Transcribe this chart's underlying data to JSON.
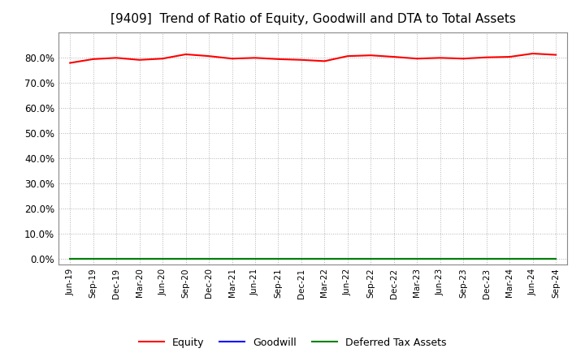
{
  "title": "[9409]  Trend of Ratio of Equity, Goodwill and DTA to Total Assets",
  "x_labels": [
    "Jun-19",
    "Sep-19",
    "Dec-19",
    "Mar-20",
    "Jun-20",
    "Sep-20",
    "Dec-20",
    "Mar-21",
    "Jun-21",
    "Sep-21",
    "Dec-21",
    "Mar-22",
    "Jun-22",
    "Sep-22",
    "Dec-22",
    "Mar-23",
    "Jun-23",
    "Sep-23",
    "Dec-23",
    "Mar-24",
    "Jun-24",
    "Sep-24"
  ],
  "equity": [
    77.8,
    79.3,
    79.8,
    79.0,
    79.5,
    81.2,
    80.5,
    79.5,
    79.8,
    79.3,
    79.0,
    78.5,
    80.5,
    80.8,
    80.2,
    79.5,
    79.8,
    79.5,
    80.0,
    80.2,
    81.5,
    81.0
  ],
  "goodwill": [
    0.0,
    0.0,
    0.0,
    0.0,
    0.0,
    0.0,
    0.0,
    0.0,
    0.0,
    0.0,
    0.0,
    0.0,
    0.0,
    0.0,
    0.0,
    0.0,
    0.0,
    0.0,
    0.0,
    0.0,
    0.0,
    0.0
  ],
  "dta": [
    0.0,
    0.0,
    0.0,
    0.0,
    0.0,
    0.0,
    0.0,
    0.0,
    0.0,
    0.0,
    0.0,
    0.0,
    0.0,
    0.0,
    0.0,
    0.0,
    0.0,
    0.0,
    0.0,
    0.0,
    0.0,
    0.0
  ],
  "equity_color": "#FF0000",
  "goodwill_color": "#0000FF",
  "dta_color": "#008000",
  "bg_color": "#FFFFFF",
  "plot_bg_color": "#FFFFFF",
  "grid_color": "#AAAAAA",
  "yticks": [
    0,
    10,
    20,
    30,
    40,
    50,
    60,
    70,
    80
  ],
  "title_fontsize": 11,
  "legend_labels": [
    "Equity",
    "Goodwill",
    "Deferred Tax Assets"
  ]
}
